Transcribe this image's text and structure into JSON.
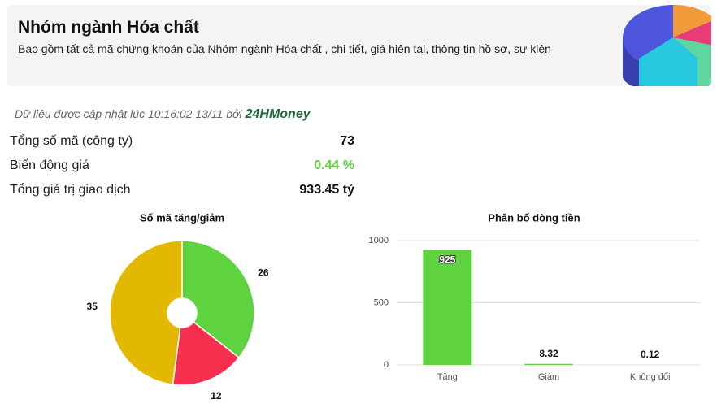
{
  "header": {
    "title": "Nhóm ngành Hóa chất",
    "description": "Bao gồm tất cả mã chứng khoán của Nhóm ngành Hóa chất , chi tiết, giá hiện tại, thông tin hồ sơ, sự kiện"
  },
  "update": {
    "text": "Dữ liệu được cập nhật lúc 10:16:02 13/11 bởi",
    "brand": "24HMoney"
  },
  "stats": [
    {
      "label": "Tổng số mã (công ty)",
      "value": "73"
    },
    {
      "label": "Biến động giá",
      "value": "0.44 %"
    },
    {
      "label": "Tổng giá trị giao dịch",
      "value": "933.45 tỷ"
    }
  ],
  "chart_data": [
    {
      "type": "pie",
      "title": "Số mã tăng/giảm",
      "values": [
        26,
        12,
        35
      ],
      "colors": [
        "#5fd33f",
        "#f5304f",
        "#e2b800"
      ]
    },
    {
      "type": "bar",
      "title": "Phân bổ dòng tiền",
      "categories": [
        "Tăng",
        "Giảm",
        "Không đổi"
      ],
      "values": [
        925,
        8.32,
        0.12
      ],
      "color": "#5fd33f",
      "ylim": [
        0,
        1000
      ],
      "yticks": [
        0,
        500,
        1000
      ],
      "grid": true
    }
  ]
}
